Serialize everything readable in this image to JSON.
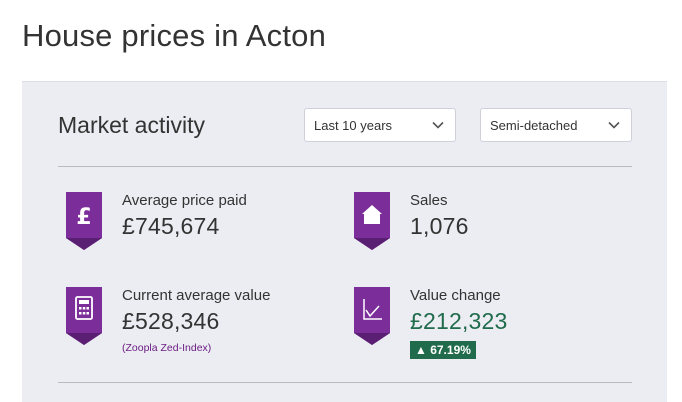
{
  "page_title": "House prices in Acton",
  "market": {
    "title": "Market activity",
    "period_select": {
      "value": "Last 10 years"
    },
    "type_select": {
      "value": "Semi-detached"
    }
  },
  "stats": {
    "avg_price": {
      "label": "Average price paid",
      "value": "£745,674",
      "icon": "pound-icon"
    },
    "sales": {
      "label": "Sales",
      "value": "1,076",
      "icon": "house-icon"
    },
    "current_value": {
      "label": "Current average value",
      "value": "£528,346",
      "note": "(Zoopla Zed-Index)",
      "icon": "calculator-icon"
    },
    "value_change": {
      "label": "Value change",
      "value": "£212,323",
      "change": "▲ 67.19%",
      "icon": "chart-icon"
    }
  },
  "colors": {
    "badge_purple": "#7b2d99",
    "badge_dark": "#5a1f72",
    "positive_green": "#1f6b4b",
    "panel_bg": "#ecedf3"
  }
}
